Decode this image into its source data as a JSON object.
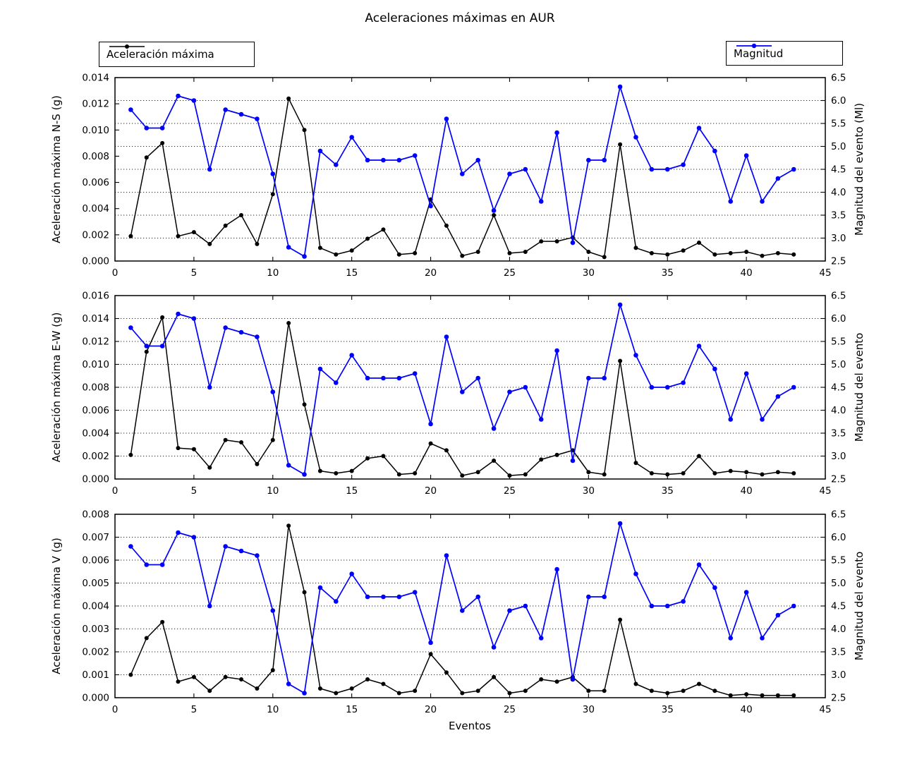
{
  "title": "Aceleraciones máximas en AUR",
  "xlabel": "Eventos",
  "legends": [
    {
      "label": "Aceleración máxima",
      "color": "#000000"
    },
    {
      "label": "Magnitud",
      "color": "#0000ff"
    }
  ],
  "chart_data": [
    {
      "name": "N-S",
      "type": "line",
      "ylabel_left": "Aceleración máxima N-S (g)",
      "ylabel_right": "Magnitud del evento (Ml)",
      "xlim": [
        0,
        45
      ],
      "xtick_step": 5,
      "ylim_left": [
        0.0,
        0.014
      ],
      "ytick_step_left": 0.002,
      "ydecimals_left": 3,
      "ylim_right": [
        2.5,
        6.5
      ],
      "ytick_step_right": 0.5,
      "ydecimals_right": 1,
      "grid": {
        "axis": "right",
        "style": "dotted",
        "between_ticks": [
          3.0,
          6.0
        ]
      },
      "x": [
        1,
        2,
        3,
        4,
        5,
        6,
        7,
        8,
        9,
        10,
        11,
        12,
        13,
        14,
        15,
        16,
        17,
        18,
        19,
        20,
        21,
        22,
        23,
        24,
        25,
        26,
        27,
        28,
        29,
        30,
        31,
        32,
        33,
        34,
        35,
        36,
        37,
        38,
        39,
        40,
        41,
        42,
        43
      ],
      "series": [
        {
          "name": "Aceleración máxima",
          "axis": "left",
          "color": "#000000",
          "marker": "circle",
          "values": [
            0.0019,
            0.0079,
            0.009,
            0.0019,
            0.0022,
            0.0013,
            0.0027,
            0.0035,
            0.0013,
            0.0051,
            0.0124,
            0.01,
            0.001,
            0.0005,
            0.0008,
            0.0017,
            0.0024,
            0.0005,
            0.0006,
            0.0047,
            0.0027,
            0.0004,
            0.0007,
            0.0035,
            0.0006,
            0.0007,
            0.0015,
            0.0015,
            0.0018,
            0.0007,
            0.0003,
            0.0089,
            0.001,
            0.0006,
            0.0005,
            0.0008,
            0.0014,
            0.0005,
            0.0006,
            0.0007,
            0.0004,
            0.0006,
            0.0005
          ]
        },
        {
          "name": "Magnitud",
          "axis": "right",
          "color": "#0000ff",
          "marker": "circle",
          "values": [
            5.8,
            5.4,
            5.4,
            6.1,
            6.0,
            4.5,
            5.8,
            5.7,
            5.6,
            4.4,
            2.8,
            2.6,
            4.9,
            4.6,
            5.2,
            4.7,
            4.7,
            4.7,
            4.8,
            3.7,
            5.6,
            4.4,
            4.7,
            3.6,
            4.4,
            4.5,
            3.8,
            5.3,
            2.9,
            4.7,
            4.7,
            6.3,
            5.2,
            4.5,
            4.5,
            4.6,
            5.4,
            4.9,
            3.8,
            4.8,
            3.8,
            4.3,
            4.5
          ]
        }
      ]
    },
    {
      "name": "E-W",
      "type": "line",
      "ylabel_left": "Aceleración máxima E-W (g)",
      "ylabel_right": "Magnitud del evento",
      "xlim": [
        0,
        45
      ],
      "xtick_step": 5,
      "ylim_left": [
        0.0,
        0.016
      ],
      "ytick_step_left": 0.002,
      "ydecimals_left": 3,
      "ylim_right": [
        2.5,
        6.5
      ],
      "ytick_step_right": 0.5,
      "ydecimals_right": 1,
      "grid": {
        "axis": "right",
        "style": "dotted",
        "between_ticks": [
          3.0,
          6.0
        ]
      },
      "x": [
        1,
        2,
        3,
        4,
        5,
        6,
        7,
        8,
        9,
        10,
        11,
        12,
        13,
        14,
        15,
        16,
        17,
        18,
        19,
        20,
        21,
        22,
        23,
        24,
        25,
        26,
        27,
        28,
        29,
        30,
        31,
        32,
        33,
        34,
        35,
        36,
        37,
        38,
        39,
        40,
        41,
        42,
        43
      ],
      "series": [
        {
          "name": "Aceleración máxima",
          "axis": "left",
          "color": "#000000",
          "marker": "circle",
          "values": [
            0.0021,
            0.0111,
            0.0141,
            0.0027,
            0.0026,
            0.001,
            0.0034,
            0.0032,
            0.0013,
            0.0034,
            0.0136,
            0.0065,
            0.0007,
            0.0005,
            0.0007,
            0.0018,
            0.002,
            0.0004,
            0.0005,
            0.0031,
            0.0025,
            0.0003,
            0.0006,
            0.0016,
            0.0003,
            0.0004,
            0.0017,
            0.0021,
            0.0025,
            0.0006,
            0.0004,
            0.0103,
            0.0014,
            0.0005,
            0.0004,
            0.0005,
            0.002,
            0.0005,
            0.0007,
            0.0006,
            0.0004,
            0.0006,
            0.0005
          ]
        },
        {
          "name": "Magnitud",
          "axis": "right",
          "color": "#0000ff",
          "marker": "circle",
          "values": [
            5.8,
            5.4,
            5.4,
            6.1,
            6.0,
            4.5,
            5.8,
            5.7,
            5.6,
            4.4,
            2.8,
            2.6,
            4.9,
            4.6,
            5.2,
            4.7,
            4.7,
            4.7,
            4.8,
            3.7,
            5.6,
            4.4,
            4.7,
            3.6,
            4.4,
            4.5,
            3.8,
            5.3,
            2.9,
            4.7,
            4.7,
            6.3,
            5.2,
            4.5,
            4.5,
            4.6,
            5.4,
            4.9,
            3.8,
            4.8,
            3.8,
            4.3,
            4.5
          ]
        }
      ]
    },
    {
      "name": "V",
      "type": "line",
      "ylabel_left": "Aceleración máxima V (g)",
      "ylabel_right": "Magnitud del evento",
      "xlim": [
        0,
        45
      ],
      "xtick_step": 5,
      "ylim_left": [
        0.0,
        0.008
      ],
      "ytick_step_left": 0.001,
      "ydecimals_left": 3,
      "ylim_right": [
        2.5,
        6.5
      ],
      "ytick_step_right": 0.5,
      "ydecimals_right": 1,
      "grid": {
        "axis": "right",
        "style": "dotted",
        "between_ticks": [
          3.0,
          6.0
        ]
      },
      "x": [
        1,
        2,
        3,
        4,
        5,
        6,
        7,
        8,
        9,
        10,
        11,
        12,
        13,
        14,
        15,
        16,
        17,
        18,
        19,
        20,
        21,
        22,
        23,
        24,
        25,
        26,
        27,
        28,
        29,
        30,
        31,
        32,
        33,
        34,
        35,
        36,
        37,
        38,
        39,
        40,
        41,
        42,
        43
      ],
      "series": [
        {
          "name": "Aceleración máxima",
          "axis": "left",
          "color": "#000000",
          "marker": "circle",
          "values": [
            0.001,
            0.0026,
            0.0033,
            0.0007,
            0.0009,
            0.0003,
            0.0009,
            0.0008,
            0.0004,
            0.0012,
            0.0075,
            0.0046,
            0.0004,
            0.0002,
            0.0004,
            0.0008,
            0.0006,
            0.0002,
            0.0003,
            0.0019,
            0.0011,
            0.0002,
            0.0003,
            0.0009,
            0.0002,
            0.0003,
            0.0008,
            0.0007,
            0.0009,
            0.0003,
            0.0003,
            0.0034,
            0.0006,
            0.0003,
            0.0002,
            0.0003,
            0.0006,
            0.0003,
            0.0001,
            0.00015,
            0.0001,
            0.0001,
            0.0001
          ]
        },
        {
          "name": "Magnitud",
          "axis": "right",
          "color": "#0000ff",
          "marker": "circle",
          "values": [
            5.8,
            5.4,
            5.4,
            6.1,
            6.0,
            4.5,
            5.8,
            5.7,
            5.6,
            4.4,
            2.8,
            2.6,
            4.9,
            4.6,
            5.2,
            4.7,
            4.7,
            4.7,
            4.8,
            3.7,
            5.6,
            4.4,
            4.7,
            3.6,
            4.4,
            4.5,
            3.8,
            5.3,
            2.9,
            4.7,
            4.7,
            6.3,
            5.2,
            4.5,
            4.5,
            4.6,
            5.4,
            4.9,
            3.8,
            4.8,
            3.8,
            4.3,
            4.5
          ]
        }
      ]
    }
  ]
}
